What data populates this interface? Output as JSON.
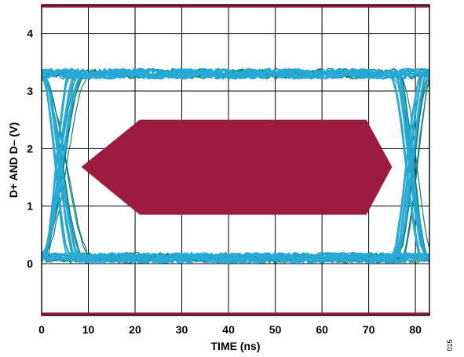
{
  "chart_data": {
    "type": "line",
    "title": "",
    "xlabel": "TIME (ns)",
    "ylabel": "D+ AND D– (V)",
    "xlim": [
      0,
      83
    ],
    "ylim": [
      -0.9,
      4.5
    ],
    "x_ticks": [
      0,
      10,
      20,
      30,
      40,
      50,
      60,
      70,
      80
    ],
    "x_tick_labels": [
      "0",
      "10",
      "20",
      "30",
      "40",
      "50",
      "60",
      "70",
      "80"
    ],
    "y_ticks": [
      0,
      1,
      2,
      3,
      4
    ],
    "y_tick_labels": [
      "0",
      "1",
      "2",
      "3",
      "4"
    ],
    "grid": true,
    "figure_id": "015",
    "colors": {
      "mask": "#9b1c40",
      "trace_light": "#27a9d6",
      "trace_dark": "#0e7c7b",
      "grid": "#000000",
      "frame": "#000000"
    },
    "mask": {
      "top_bar_min_v": 4.45,
      "bottom_bar_max_v": -0.85,
      "hexagon": [
        [
          8.5,
          1.68
        ],
        [
          21,
          2.5
        ],
        [
          69.5,
          2.5
        ],
        [
          75,
          1.68
        ],
        [
          69.5,
          0.85
        ],
        [
          21,
          0.85
        ]
      ]
    },
    "eye": {
      "v_high": 3.3,
      "v_low": 0.1,
      "transitions": [
        {
          "direction": "rise",
          "t_start": 0,
          "t_end": 9
        },
        {
          "direction": "fall",
          "t_start": 0,
          "t_end": 11
        },
        {
          "direction": "fall",
          "t_start": 76,
          "t_end": 83
        },
        {
          "direction": "rise",
          "t_start": 76,
          "t_end": 83
        }
      ]
    },
    "series": [
      {
        "color": "#27a9d6"
      },
      {
        "color": "#0e7c7b"
      }
    ]
  }
}
